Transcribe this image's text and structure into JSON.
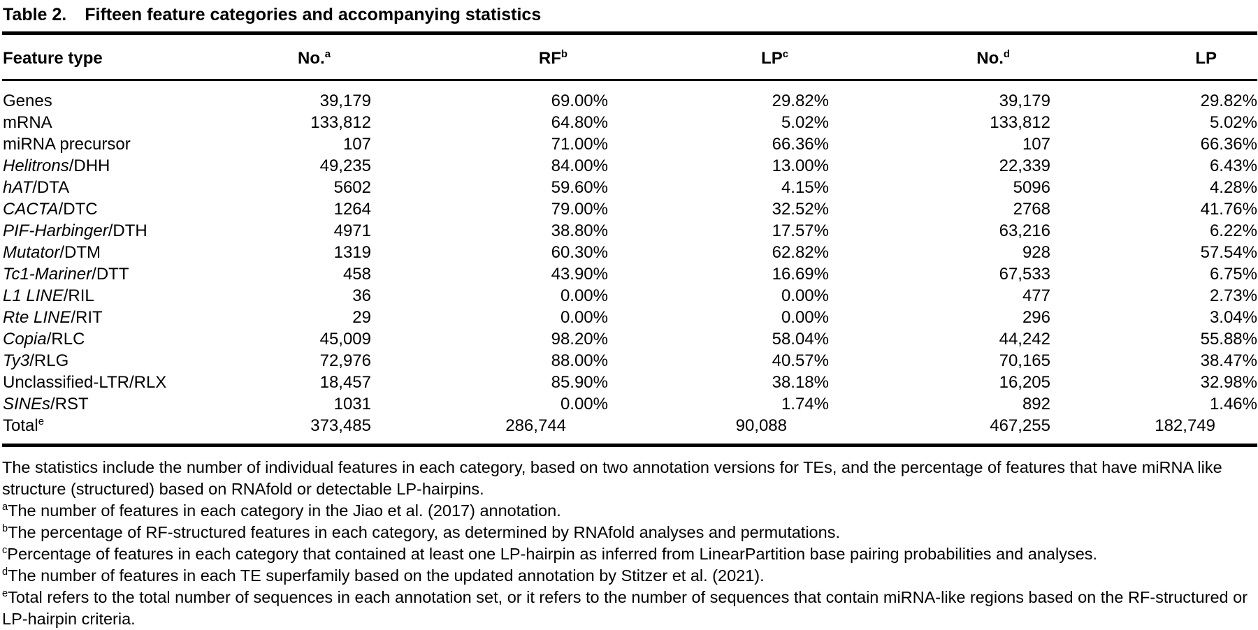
{
  "title": {
    "label": "Table 2.",
    "text": "Fifteen feature categories and accompanying statistics"
  },
  "table": {
    "columns": [
      {
        "label": "Feature type",
        "sup": ""
      },
      {
        "label": "No.",
        "sup": "a"
      },
      {
        "label": "RF",
        "sup": "b"
      },
      {
        "label": "LP",
        "sup": "c"
      },
      {
        "label": "No.",
        "sup": "d"
      },
      {
        "label": "LP",
        "sup": ""
      }
    ],
    "rows": [
      {
        "feature": {
          "italic": "",
          "roman": "Genes",
          "sup": ""
        },
        "is_total": false,
        "values": [
          "39,179",
          "69.00%",
          "29.82%",
          "39,179",
          "29.82%"
        ]
      },
      {
        "feature": {
          "italic": "",
          "roman": "mRNA",
          "sup": ""
        },
        "is_total": false,
        "values": [
          "133,812",
          "64.80%",
          "5.02%",
          "133,812",
          "5.02%"
        ]
      },
      {
        "feature": {
          "italic": "",
          "roman": "miRNA precursor",
          "sup": ""
        },
        "is_total": false,
        "values": [
          "107",
          "71.00%",
          "66.36%",
          "107",
          "66.36%"
        ]
      },
      {
        "feature": {
          "italic": "Helitrons",
          "roman": "/DHH",
          "sup": ""
        },
        "is_total": false,
        "values": [
          "49,235",
          "84.00%",
          "13.00%",
          "22,339",
          "6.43%"
        ]
      },
      {
        "feature": {
          "italic": "hAT",
          "roman": "/DTA",
          "sup": ""
        },
        "is_total": false,
        "values": [
          "5602",
          "59.60%",
          "4.15%",
          "5096",
          "4.28%"
        ]
      },
      {
        "feature": {
          "italic": "CACTA",
          "roman": "/DTC",
          "sup": ""
        },
        "is_total": false,
        "values": [
          "1264",
          "79.00%",
          "32.52%",
          "2768",
          "41.76%"
        ]
      },
      {
        "feature": {
          "italic": "PIF-Harbinger",
          "roman": "/DTH",
          "sup": ""
        },
        "is_total": false,
        "values": [
          "4971",
          "38.80%",
          "17.57%",
          "63,216",
          "6.22%"
        ]
      },
      {
        "feature": {
          "italic": "Mutator",
          "roman": "/DTM",
          "sup": ""
        },
        "is_total": false,
        "values": [
          "1319",
          "60.30%",
          "62.82%",
          "928",
          "57.54%"
        ]
      },
      {
        "feature": {
          "italic": "Tc1-Mariner",
          "roman": "/DTT",
          "sup": ""
        },
        "is_total": false,
        "values": [
          "458",
          "43.90%",
          "16.69%",
          "67,533",
          "6.75%"
        ]
      },
      {
        "feature": {
          "italic": "L1 LINE",
          "roman": "/RIL",
          "sup": ""
        },
        "is_total": false,
        "values": [
          "36",
          "0.00%",
          "0.00%",
          "477",
          "2.73%"
        ]
      },
      {
        "feature": {
          "italic": "Rte LINE",
          "roman": "/RIT",
          "sup": ""
        },
        "is_total": false,
        "values": [
          "29",
          "0.00%",
          "0.00%",
          "296",
          "3.04%"
        ]
      },
      {
        "feature": {
          "italic": "Copia",
          "roman": "/RLC",
          "sup": ""
        },
        "is_total": false,
        "values": [
          "45,009",
          "98.20%",
          "58.04%",
          "44,242",
          "55.88%"
        ]
      },
      {
        "feature": {
          "italic": "Ty3",
          "roman": "/RLG",
          "sup": ""
        },
        "is_total": false,
        "values": [
          "72,976",
          "88.00%",
          "40.57%",
          "70,165",
          "38.47%"
        ]
      },
      {
        "feature": {
          "italic": "",
          "roman": "Unclassified-LTR/RLX",
          "sup": ""
        },
        "is_total": false,
        "values": [
          "18,457",
          "85.90%",
          "38.18%",
          "16,205",
          "32.98%"
        ]
      },
      {
        "feature": {
          "italic": "SINEs",
          "roman": "/RST",
          "sup": ""
        },
        "is_total": false,
        "values": [
          "1031",
          "0.00%",
          "1.74%",
          "892",
          "1.46%"
        ]
      },
      {
        "feature": {
          "italic": "",
          "roman": "Total",
          "sup": "e"
        },
        "is_total": true,
        "values": [
          "373,485",
          "286,744",
          "90,088",
          "467,255",
          "182,749"
        ]
      }
    ]
  },
  "footnotes": [
    {
      "sup": "",
      "text": "The statistics include the number of individual features in each category, based on two annotation versions for TEs, and the percentage of features that have miRNA like structure (structured) based on RNAfold or detectable LP-hairpins."
    },
    {
      "sup": "a",
      "text": "The number of features in each category in the Jiao et al. (2017) annotation."
    },
    {
      "sup": "b",
      "text": "The percentage of RF-structured features in each category, as determined by RNAfold analyses and permutations."
    },
    {
      "sup": "c",
      "text": "Percentage of features in each category that contained at least one LP-hairpin as inferred from LinearPartition base pairing probabilities and analyses."
    },
    {
      "sup": "d",
      "text": "The number of features in each TE superfamily based on the updated annotation by Stitzer et al. (2021)."
    },
    {
      "sup": "e",
      "text": "Total refers to the total number of sequences in each annotation set, or it refers to the number of sequences that contain miRNA-like regions based on the RF-structured or LP-hairpin criteria."
    }
  ]
}
